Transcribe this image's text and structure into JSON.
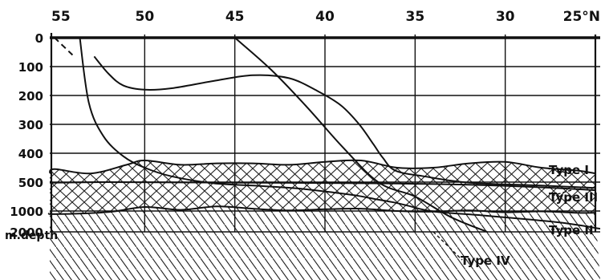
{
  "chart_data": {
    "type": "line",
    "title": "",
    "xlabel": "",
    "ylabel": "m.depth",
    "x_axis": {
      "position": "top",
      "ticks": [
        "55",
        "50",
        "45",
        "40",
        "35",
        "30",
        "25°N"
      ],
      "range": [
        55,
        25
      ],
      "reversed": true
    },
    "y_axis": {
      "label": "m.depth",
      "ticks": [
        "0",
        "100",
        "200",
        "300",
        "400",
        "500",
        "1000",
        "2000"
      ],
      "reversed": true
    },
    "grid": true,
    "hatched_layers": true,
    "series": [
      {
        "name": "Type I",
        "x": [
          56,
          55,
          53,
          51,
          50,
          48,
          46,
          44,
          42,
          40,
          38,
          36,
          34,
          32,
          30,
          28,
          26,
          25
        ],
        "y": [
          470,
          455,
          470,
          440,
          425,
          440,
          435,
          435,
          440,
          430,
          425,
          450,
          450,
          435,
          430,
          450,
          460,
          470
        ]
      },
      {
        "name": "Type III",
        "x": [
          56,
          52,
          48,
          44,
          40,
          36,
          32,
          28,
          25
        ],
        "y": [
          510,
          500,
          505,
          510,
          515,
          525,
          545,
          590,
          640
        ]
      },
      {
        "name": "Type II",
        "x": [
          56,
          55,
          52,
          50,
          48,
          46,
          44,
          42,
          40,
          38,
          36,
          34,
          32,
          30,
          28,
          26,
          25
        ],
        "y": [
          1100,
          1150,
          1050,
          930,
          980,
          920,
          960,
          990,
          970,
          960,
          1000,
          1030,
          990,
          1060,
          1020,
          1090,
          1080
        ]
      },
      {
        "name": "Type IV",
        "x": [
          45,
          43,
          41,
          39,
          37,
          35,
          33,
          31
        ],
        "y": [
          0,
          110,
          240,
          380,
          510,
          750,
          1300,
          2000
        ]
      }
    ],
    "unlabeled_curves": [
      {
        "x": [
          53.6,
          53.1,
          52.3,
          51.2,
          50,
          48.5,
          46.2,
          44,
          41.5,
          39.5,
          38.1,
          37.1,
          36.2,
          35.5,
          34,
          31,
          27,
          24
        ],
        "y": [
          0,
          225,
          340,
          410,
          450,
          480,
          520,
          560,
          610,
          680,
          740,
          800,
          850,
          900,
          1020,
          1230,
          1550,
          1850
        ]
      },
      {
        "x": [
          52.8,
          52.0,
          51.2,
          50.0,
          48.5,
          46.2,
          44.0,
          42.0,
          40.4,
          39.1,
          38.1,
          37.3,
          36.8,
          36.1,
          34.5,
          32,
          28,
          25
        ],
        "y": [
          65,
          125,
          165,
          180,
          175,
          150,
          130,
          140,
          185,
          235,
          300,
          370,
          415,
          460,
          480,
          510,
          560,
          600
        ]
      },
      {
        "x": [
          55.0,
          54.0
        ],
        "y": [
          0,
          60
        ]
      }
    ]
  }
}
